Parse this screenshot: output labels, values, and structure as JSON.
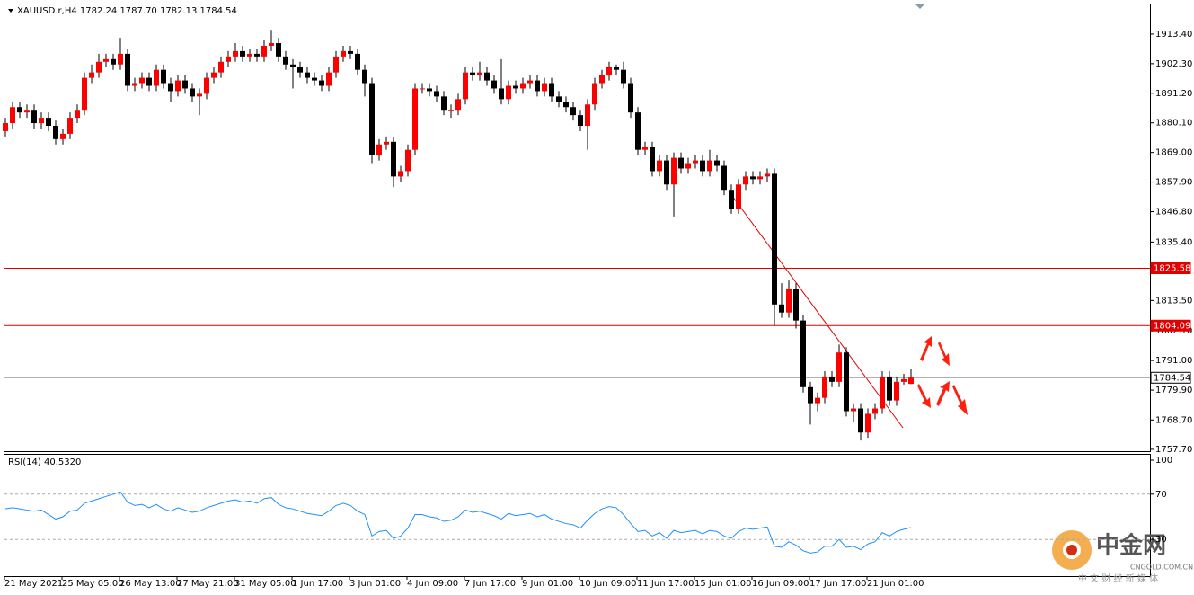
{
  "chart_data": {
    "type": "candlestick",
    "title": "XAUUSD.r,H4  1782.24 1787.70 1782.13 1784.54",
    "bull_color": "#ff0000",
    "bear_color": "#000000",
    "ylim": [
      1757.0,
      1924.5
    ],
    "yticks": [
      {
        "value": 1913.4,
        "label": "1913.40"
      },
      {
        "value": 1902.3,
        "label": "1902.30"
      },
      {
        "value": 1891.2,
        "label": "1891.20"
      },
      {
        "value": 1880.1,
        "label": "1880.10"
      },
      {
        "value": 1869.0,
        "label": "1869.00"
      },
      {
        "value": 1857.9,
        "label": "1857.90"
      },
      {
        "value": 1846.8,
        "label": "1846.80"
      },
      {
        "value": 1835.4,
        "label": "1835.40"
      },
      {
        "value": 1813.5,
        "label": "1813.50"
      },
      {
        "value": 1802.1,
        "label": "1802.10"
      },
      {
        "value": 1791.0,
        "label": "1791.00"
      },
      {
        "value": 1779.9,
        "label": "1779.90"
      },
      {
        "value": 1768.7,
        "label": "1768.70"
      },
      {
        "value": 1757.7,
        "label": "1757.70"
      }
    ],
    "hlines": [
      {
        "value": 1825.58,
        "color": "#e00000"
      },
      {
        "value": 1804.09,
        "color": "#e00000"
      },
      {
        "value": 1784.54,
        "color": "#999999"
      }
    ],
    "categories": [
      "21 May 2021",
      null,
      null,
      null,
      null,
      null,
      null,
      null,
      "25 May 05:00",
      null,
      null,
      null,
      null,
      null,
      null,
      null,
      "26 May 13:00",
      null,
      null,
      null,
      null,
      null,
      null,
      null,
      "27 May 21:00",
      null,
      null,
      null,
      null,
      null,
      null,
      null,
      "31 May 05:00",
      null,
      null,
      null,
      null,
      null,
      null,
      null,
      "1 Jun 17:00",
      null,
      null,
      null,
      null,
      null,
      null,
      null,
      "3 Jun 01:00",
      null,
      null,
      null,
      null,
      null,
      null,
      null,
      "4 Jun 09:00",
      null,
      null,
      null,
      null,
      null,
      null,
      null,
      "7 Jun 17:00",
      null,
      null,
      null,
      null,
      null,
      null,
      null,
      "9 Jun 01:00",
      null,
      null,
      null,
      null,
      null,
      null,
      null,
      "10 Jun 09:00",
      null,
      null,
      null,
      null,
      null,
      null,
      null,
      "11 Jun 17:00",
      null,
      null,
      null,
      null,
      null,
      null,
      null,
      "15 Jun 01:00",
      null,
      null,
      null,
      null,
      null,
      null,
      null,
      "16 Jun 09:00",
      null,
      null,
      null,
      null,
      null,
      null,
      null,
      "17 Jun 17:00",
      null,
      null,
      null,
      null,
      null,
      null,
      null,
      "21 Jun 01:00",
      null,
      null,
      null,
      null,
      null,
      null
    ],
    "open": [
      1877,
      1880,
      1886,
      1884,
      1885,
      1880,
      1882,
      1879,
      1874,
      1876,
      1882,
      1885,
      1897,
      1899,
      1903,
      1904,
      1902,
      1906,
      1894,
      1895,
      1897,
      1894,
      1900,
      1895,
      1892,
      1896,
      1893,
      1890,
      1891,
      1897,
      1899,
      1903,
      1905,
      1907,
      1905,
      1906,
      1905,
      1909,
      1910,
      1905,
      1902,
      1901,
      1899,
      1897,
      1896,
      1894,
      1899,
      1905,
      1907,
      1906,
      1900,
      1895,
      1868,
      1872,
      1873,
      1860,
      1862,
      1870,
      1893,
      1893,
      1892,
      1890,
      1885,
      1885,
      1889,
      1899,
      1898,
      1899,
      1896,
      1893,
      1889,
      1894,
      1893,
      1895,
      1896,
      1892,
      1895,
      1890,
      1888,
      1886,
      1883,
      1879,
      1887,
      1895,
      1898,
      1901,
      1900,
      1895,
      1884,
      1870,
      1871,
      1862,
      1866,
      1857,
      1867,
      1863,
      1865,
      1866,
      1862,
      1866,
      1864,
      1855,
      1848,
      1857,
      1860,
      1859,
      1860,
      1861,
      1812,
      1809,
      1818,
      1806,
      1781,
      1775,
      1777,
      1785,
      1783,
      1794,
      1772,
      1773,
      1764,
      1771,
      1773,
      1785,
      1776,
      1783,
      1782.24
    ],
    "high": [
      1882,
      1888,
      1888,
      1887,
      1887,
      1884,
      1884,
      1881,
      1878,
      1884,
      1887,
      1899,
      1902,
      1906,
      1906,
      1906,
      1912,
      1908,
      1897,
      1899,
      1899,
      1902,
      1902,
      1897,
      1898,
      1898,
      1895,
      1893,
      1899,
      1901,
      1905,
      1907,
      1910,
      1909,
      1908,
      1908,
      1911,
      1915,
      1912,
      1907,
      1904,
      1903,
      1901,
      1899,
      1898,
      1901,
      1907,
      1909,
      1909,
      1908,
      1902,
      1897,
      1874,
      1875,
      1875,
      1864,
      1872,
      1895,
      1895,
      1895,
      1894,
      1892,
      1887,
      1891,
      1901,
      1901,
      1903,
      1901,
      1898,
      1904,
      1896,
      1896,
      1897,
      1898,
      1898,
      1897,
      1897,
      1892,
      1890,
      1888,
      1885,
      1889,
      1897,
      1900,
      1903,
      1902,
      1903,
      1897,
      1886,
      1873,
      1873,
      1868,
      1868,
      1869,
      1869,
      1867,
      1868,
      1868,
      1870,
      1868,
      1866,
      1857,
      1859,
      1862,
      1862,
      1862,
      1863,
      1863,
      1820,
      1821,
      1820,
      1808,
      1783,
      1779,
      1787,
      1787,
      1797,
      1796,
      1775,
      1775,
      1773,
      1775,
      1787,
      1787,
      1785,
      1786,
      1787.7
    ],
    "low": [
      1875,
      1878,
      1882,
      1882,
      1878,
      1878,
      1877,
      1872,
      1872,
      1874,
      1880,
      1883,
      1895,
      1897,
      1901,
      1900,
      1900,
      1892,
      1892,
      1893,
      1892,
      1892,
      1893,
      1888,
      1890,
      1891,
      1888,
      1883,
      1889,
      1895,
      1897,
      1901,
      1903,
      1903,
      1903,
      1903,
      1903,
      1907,
      1903,
      1900,
      1893,
      1897,
      1895,
      1894,
      1892,
      1892,
      1897,
      1903,
      1904,
      1898,
      1890,
      1865,
      1866,
      1870,
      1856,
      1858,
      1860,
      1868,
      1891,
      1890,
      1888,
      1883,
      1882,
      1883,
      1887,
      1896,
      1896,
      1894,
      1891,
      1887,
      1887,
      1891,
      1891,
      1893,
      1890,
      1890,
      1888,
      1886,
      1884,
      1881,
      1877,
      1870,
      1885,
      1893,
      1896,
      1898,
      1893,
      1882,
      1868,
      1868,
      1860,
      1860,
      1855,
      1845,
      1861,
      1861,
      1863,
      1860,
      1860,
      1862,
      1853,
      1846,
      1846,
      1855,
      1857,
      1857,
      1858,
      1804,
      1807,
      1807,
      1803,
      1779,
      1767,
      1772,
      1775,
      1781,
      1781,
      1770,
      1768,
      1761,
      1762,
      1769,
      1771,
      1774,
      1774,
      1782,
      1782.13
    ],
    "close": [
      1880,
      1886,
      1884,
      1885,
      1880,
      1882,
      1879,
      1874,
      1876,
      1882,
      1885,
      1897,
      1899,
      1903,
      1904,
      1902,
      1906,
      1894,
      1895,
      1897,
      1894,
      1900,
      1895,
      1892,
      1896,
      1893,
      1890,
      1891,
      1897,
      1899,
      1903,
      1905,
      1907,
      1905,
      1906,
      1905,
      1909,
      1910,
      1905,
      1902,
      1901,
      1899,
      1897,
      1896,
      1894,
      1899,
      1905,
      1907,
      1906,
      1900,
      1895,
      1868,
      1872,
      1873,
      1860,
      1862,
      1870,
      1893,
      1893,
      1892,
      1890,
      1885,
      1885,
      1889,
      1899,
      1898,
      1899,
      1896,
      1893,
      1889,
      1894,
      1893,
      1895,
      1896,
      1892,
      1895,
      1890,
      1888,
      1886,
      1883,
      1879,
      1887,
      1895,
      1898,
      1901,
      1900,
      1895,
      1884,
      1870,
      1871,
      1862,
      1866,
      1857,
      1867,
      1863,
      1865,
      1866,
      1862,
      1866,
      1864,
      1855,
      1848,
      1857,
      1860,
      1859,
      1860,
      1861,
      1812,
      1809,
      1818,
      1806,
      1781,
      1775,
      1777,
      1785,
      1783,
      1794,
      1772,
      1773,
      1764,
      1771,
      1773,
      1785,
      1776,
      1783,
      1784,
      1784.54
    ],
    "rsi": {
      "label": "RSI(14) 40.5320",
      "color": "#1e90ff",
      "ylim": [
        0,
        100
      ],
      "yticks": [
        100,
        70,
        30
      ],
      "guides": [
        70,
        30
      ],
      "values": [
        57,
        58,
        57,
        56,
        55,
        56,
        52,
        48,
        50,
        55,
        56,
        62,
        64,
        66,
        68,
        70,
        72,
        63,
        60,
        61,
        58,
        61,
        57,
        55,
        58,
        56,
        54,
        55,
        58,
        60,
        62,
        64,
        65,
        63,
        64,
        62,
        66,
        67,
        61,
        58,
        57,
        55,
        53,
        52,
        51,
        55,
        60,
        62,
        60,
        55,
        52,
        33,
        37,
        38,
        31,
        33,
        40,
        52,
        52,
        50,
        49,
        46,
        47,
        50,
        56,
        54,
        55,
        53,
        51,
        48,
        53,
        51,
        52,
        53,
        50,
        52,
        48,
        46,
        44,
        43,
        40,
        47,
        53,
        57,
        59,
        58,
        52,
        44,
        37,
        38,
        33,
        36,
        31,
        38,
        36,
        37,
        38,
        35,
        38,
        37,
        33,
        31,
        37,
        40,
        39,
        40,
        41,
        24,
        23,
        28,
        25,
        20,
        18,
        19,
        24,
        24,
        30,
        23,
        24,
        21,
        26,
        28,
        36,
        33,
        37,
        39,
        40.532
      ]
    }
  },
  "watermark": {
    "name": "中金网",
    "site": "CNGOLD.COM.CN",
    "tagline": "中 文 财 经 新 媒 体"
  }
}
